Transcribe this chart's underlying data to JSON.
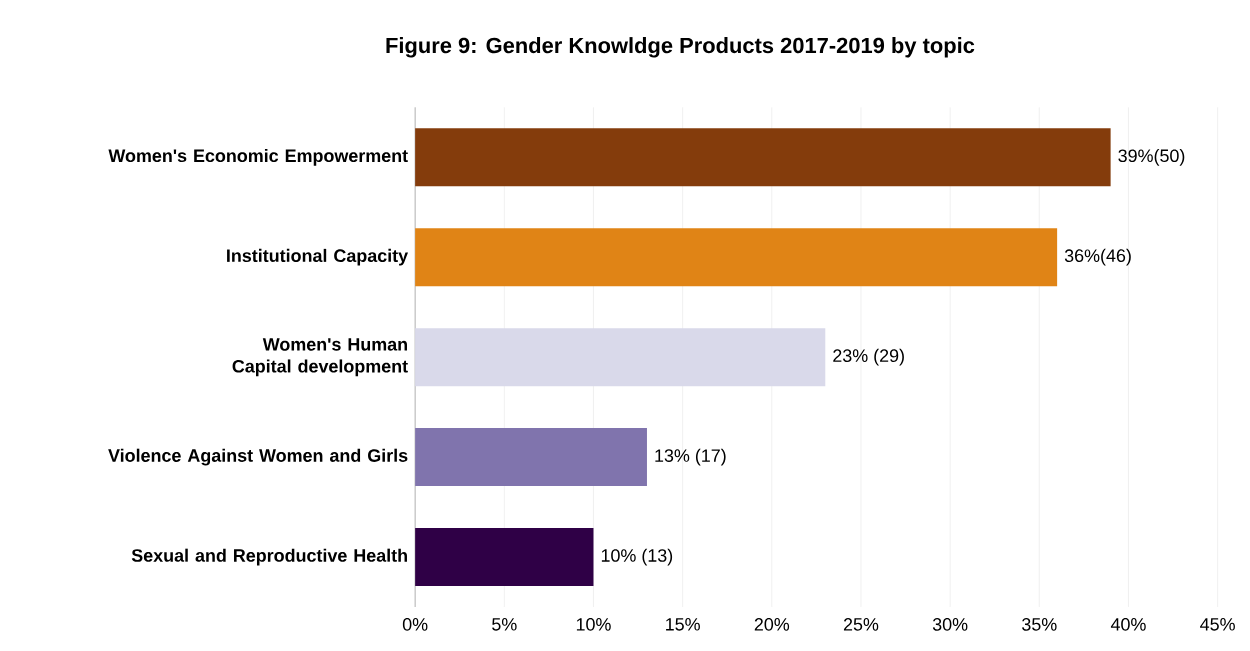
{
  "chart_data": {
    "type": "bar",
    "orientation": "horizontal",
    "title": "Figure 9: Gender Knowldge Products 2017-2019 by topic",
    "categories": [
      "Women's Economic Empowerment",
      "Institutional Capacity",
      "Women's Human Capital development",
      "Violence Against Women and Girls",
      "Sexual and Reproductive Health"
    ],
    "values": [
      39,
      36,
      23,
      13,
      10
    ],
    "colors": [
      "#843c0c",
      "#e08416",
      "#d9d9ea",
      "#8074ad",
      "#2f0046"
    ],
    "value_labels": [
      "39%(50)",
      "36%(46)",
      "23% (29)",
      "13% (17)",
      "10% (13)"
    ],
    "xlim": [
      0,
      45
    ],
    "xticks": [
      {
        "value": 0,
        "label": "0%"
      },
      {
        "value": 5,
        "label": "5%"
      },
      {
        "value": 10,
        "label": "10%"
      },
      {
        "value": 15,
        "label": "15%"
      },
      {
        "value": 20,
        "label": "20%"
      },
      {
        "value": 25,
        "label": "25%"
      },
      {
        "value": 30,
        "label": "30%"
      },
      {
        "value": 35,
        "label": "35%"
      },
      {
        "value": 40,
        "label": "40%"
      },
      {
        "value": 45,
        "label": "45%"
      }
    ],
    "grid": "x"
  }
}
